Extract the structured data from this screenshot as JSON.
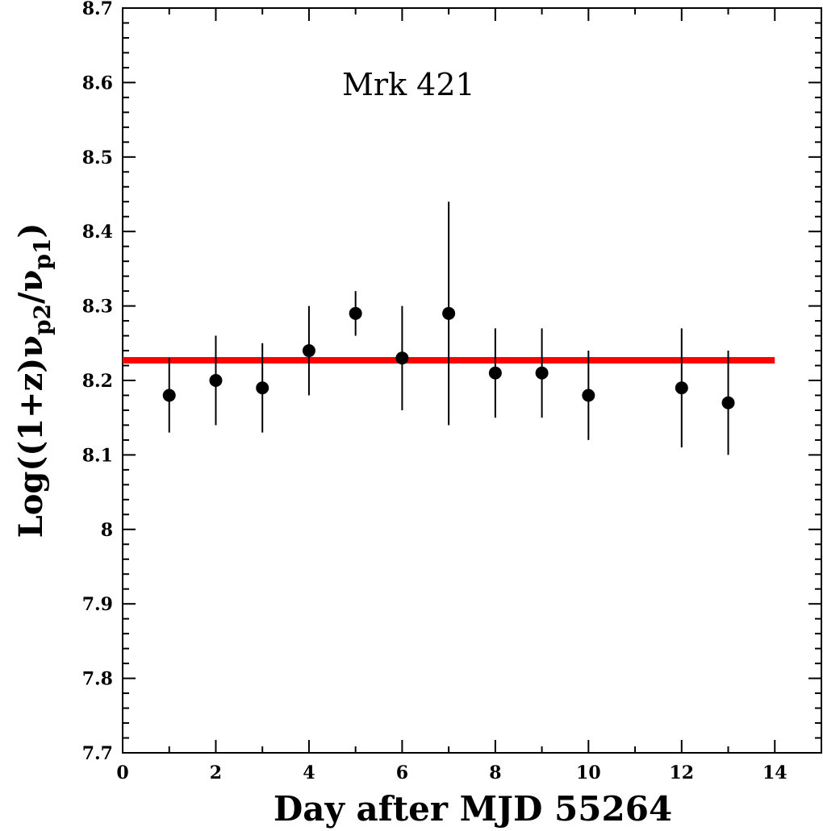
{
  "chart_data": {
    "type": "scatter",
    "title": "",
    "annotation": "Mrk 421",
    "xlabel": "Day after MJD 55264",
    "ylabel": {
      "main": "Log((1+z)ν",
      "sub1": "p2",
      "mid": "/ν",
      "sub2": "p1",
      "end": ")"
    },
    "xlim": [
      0,
      15
    ],
    "ylim": [
      7.7,
      8.7
    ],
    "xticks": [
      0,
      2,
      4,
      6,
      8,
      10,
      12,
      14
    ],
    "xtick_labels": [
      "0",
      "2",
      "4",
      "6",
      "8",
      "10",
      "12",
      "14"
    ],
    "yticks": [
      7.7,
      7.8,
      7.9,
      8.0,
      8.1,
      8.2,
      8.3,
      8.4,
      8.5,
      8.6,
      8.7
    ],
    "ytick_labels": [
      "7.7",
      "7.8",
      "7.9",
      "8",
      "8.1",
      "8.2",
      "8.3",
      "8.4",
      "8.5",
      "8.6",
      "8.7"
    ],
    "grid": false,
    "series": [
      {
        "points": [
          {
            "x": 1,
            "y": 8.18,
            "ylo": 8.13,
            "yhi": 8.23
          },
          {
            "x": 2,
            "y": 8.2,
            "ylo": 8.14,
            "yhi": 8.26
          },
          {
            "x": 3,
            "y": 8.19,
            "ylo": 8.13,
            "yhi": 8.25
          },
          {
            "x": 4,
            "y": 8.24,
            "ylo": 8.18,
            "yhi": 8.3
          },
          {
            "x": 5,
            "y": 8.29,
            "ylo": 8.26,
            "yhi": 8.32
          },
          {
            "x": 6,
            "y": 8.23,
            "ylo": 8.16,
            "yhi": 8.3
          },
          {
            "x": 7,
            "y": 8.29,
            "ylo": 8.14,
            "yhi": 8.44
          },
          {
            "x": 8,
            "y": 8.21,
            "ylo": 8.15,
            "yhi": 8.27
          },
          {
            "x": 9,
            "y": 8.21,
            "ylo": 8.15,
            "yhi": 8.27
          },
          {
            "x": 10,
            "y": 8.18,
            "ylo": 8.12,
            "yhi": 8.24
          },
          {
            "x": 12,
            "y": 8.19,
            "ylo": 8.11,
            "yhi": 8.27
          },
          {
            "x": 13,
            "y": 8.17,
            "ylo": 8.1,
            "yhi": 8.24
          }
        ],
        "color": "#000000"
      }
    ],
    "reference_line": {
      "y": 8.227,
      "x_from": 0,
      "x_to": 14,
      "color": "#ff0000"
    }
  }
}
